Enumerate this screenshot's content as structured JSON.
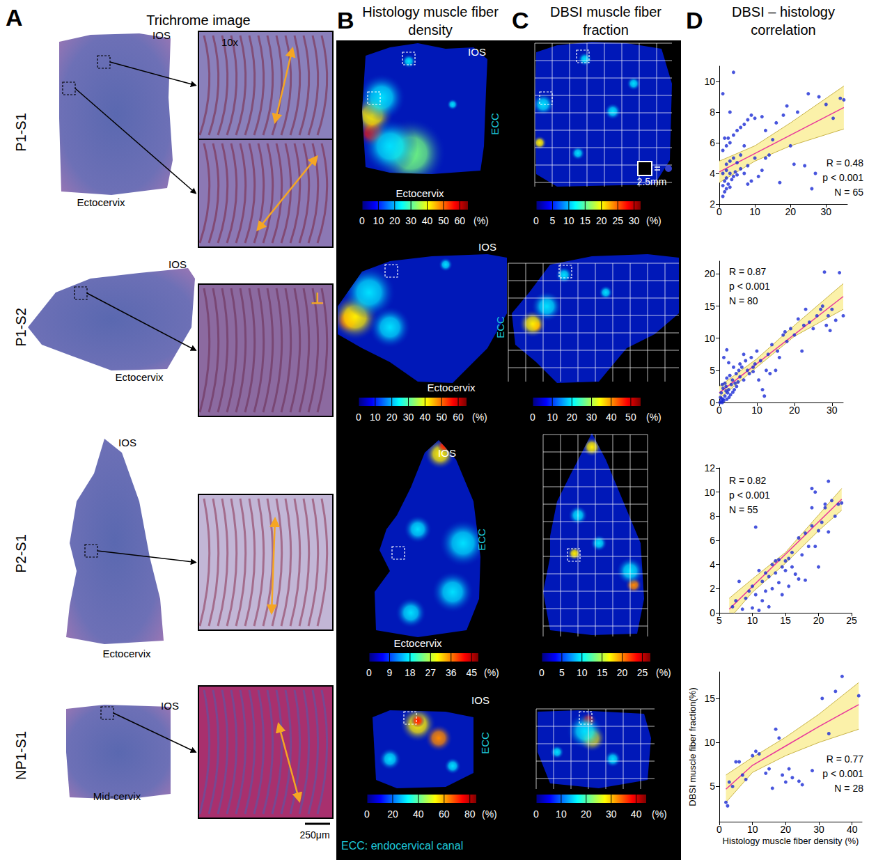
{
  "panel_headers": [
    {
      "letter": "A",
      "title": "Trichrome image"
    },
    {
      "letter": "B",
      "title": "Histology muscle fiber density"
    },
    {
      "letter": "C",
      "title": "DBSI muscle fiber fraction"
    },
    {
      "letter": "D",
      "title": "DBSI – histology correlation"
    }
  ],
  "rows": [
    {
      "label": "P1-S1",
      "trichrome": {
        "ios": "IOS",
        "region": "Ectocervix",
        "magnification": "10x"
      },
      "histology": {
        "ios": "IOS",
        "ecc": "ECC",
        "region": "Ectocervix",
        "colorbar": {
          "range": [
            0,
            65
          ],
          "ticks": [
            0,
            10,
            20,
            30,
            40,
            50,
            60
          ],
          "unit": "(%)"
        }
      },
      "dbsi": {
        "scale": "2.5mm",
        "colorbar": {
          "range": [
            0,
            32
          ],
          "ticks": [
            0,
            5,
            10,
            15,
            20,
            25,
            30
          ],
          "unit": "(%)"
        }
      }
    },
    {
      "label": "P1-S2",
      "trichrome": {
        "ios": "IOS",
        "region": "Ectocervix",
        "orientation_mark": "⊥"
      },
      "histology": {
        "ios": "IOS",
        "region": "Ectocervix",
        "colorbar": {
          "range": [
            0,
            65
          ],
          "ticks": [
            0,
            10,
            20,
            30,
            40,
            50,
            60
          ],
          "unit": "(%)"
        }
      },
      "dbsi": {
        "ecc": "ECC",
        "colorbar": {
          "range": [
            0,
            55
          ],
          "ticks": [
            0,
            10,
            20,
            30,
            40,
            50
          ],
          "unit": "(%)"
        }
      }
    },
    {
      "label": "P2-S1",
      "trichrome": {
        "ios": "IOS",
        "region": "Ectocervix"
      },
      "histology": {
        "ios": "IOS",
        "ecc": "ECC",
        "region": "Ectocervix",
        "colorbar": {
          "range": [
            0,
            48
          ],
          "ticks": [
            0,
            9,
            18,
            27,
            36,
            45
          ],
          "unit": "(%)"
        }
      },
      "dbsi": {
        "colorbar": {
          "range": [
            0,
            27
          ],
          "ticks": [
            0,
            5,
            10,
            15,
            20,
            25
          ],
          "unit": "(%)"
        }
      }
    },
    {
      "label": "NP1-S1",
      "trichrome": {
        "ios": "IOS",
        "region": "Mid-cervix"
      },
      "histology": {
        "ios": "IOS",
        "ecc": "ECC",
        "colorbar": {
          "range": [
            0,
            85
          ],
          "ticks": [
            0,
            20,
            40,
            60,
            80
          ],
          "unit": "(%)"
        }
      },
      "dbsi": {
        "colorbar": {
          "range": [
            0,
            44
          ],
          "ticks": [
            0,
            10,
            20,
            30,
            40
          ],
          "unit": "(%)"
        }
      }
    }
  ],
  "scale_bar": "250μm",
  "footnote": "ECC: endocervical canal",
  "chart_data": [
    {
      "type": "scatter",
      "color": "#1a2ad4",
      "x": [
        1,
        1.5,
        2,
        1,
        2.5,
        3,
        1.5,
        2,
        3.5,
        4,
        1,
        2,
        3,
        4.5,
        5,
        6,
        7,
        8,
        2,
        3,
        4,
        5,
        6,
        1,
        2,
        3,
        1.5,
        2.5,
        4,
        5,
        6,
        7,
        8,
        9,
        10,
        3,
        1,
        4,
        9,
        11,
        12,
        13,
        14,
        15,
        16,
        17,
        18,
        19,
        20,
        21,
        22,
        24,
        25,
        26,
        27,
        28,
        30,
        32,
        34,
        35,
        12,
        13,
        7,
        10,
        8
      ],
      "values": [
        2.5,
        2.8,
        3.0,
        3.2,
        3.3,
        3.1,
        3.5,
        3.7,
        3.6,
        3.8,
        4.0,
        4.2,
        4.0,
        4.1,
        3.9,
        4.3,
        4.0,
        4.5,
        4.6,
        4.8,
        5.0,
        4.7,
        5.2,
        5.5,
        5.8,
        6.0,
        6.3,
        6.3,
        6.5,
        6.8,
        7.0,
        7.2,
        7.5,
        7.8,
        7.6,
        8.0,
        9.2,
        10.6,
        3.5,
        3.8,
        4.2,
        5.0,
        5.2,
        6.2,
        7.3,
        3.4,
        7.8,
        8.4,
        5.8,
        4.6,
        8.0,
        4.5,
        9.2,
        3.0,
        4.0,
        9.0,
        8.5,
        7.6,
        8.9,
        8.8,
        7.7,
        6.8,
        5.8,
        5.0,
        3.3
      ],
      "xlim": [
        0,
        36
      ],
      "xticks": [
        0,
        10,
        20,
        30
      ],
      "ylim": [
        2,
        11
      ],
      "yticks": [
        2,
        4,
        6,
        8,
        10
      ],
      "fit": {
        "x": [
          0,
          35
        ],
        "values": [
          4.1,
          8.3
        ],
        "color": "#e8369b"
      },
      "band": {
        "x": [
          0,
          10,
          20,
          35
        ],
        "lower": [
          3.4,
          4.8,
          5.8,
          6.9
        ],
        "upper": [
          4.8,
          5.8,
          7.3,
          9.7
        ],
        "color": "#fbf1a9"
      },
      "annotations": [
        "R = 0.48",
        "p < 0.001",
        "N = 65"
      ]
    },
    {
      "type": "scatter",
      "color": "#1a2ad4",
      "x": [
        0.2,
        0.5,
        0.8,
        1,
        1.2,
        1.5,
        0.3,
        2,
        2.2,
        2.5,
        0.5,
        1,
        1.8,
        3,
        3.2,
        3.5,
        0.8,
        1.5,
        2,
        2.8,
        4,
        4.2,
        4.5,
        5,
        5.2,
        3.8,
        2.5,
        1.2,
        0.6,
        1.8,
        2.6,
        3.6,
        4.6,
        5.5,
        6,
        6.5,
        7,
        7.5,
        8,
        2,
        8.5,
        9,
        9.5,
        10,
        10.5,
        11,
        11.5,
        12,
        12.5,
        13,
        13.5,
        14,
        15,
        15.5,
        16,
        17,
        17.5,
        18,
        19,
        20,
        21,
        22,
        5.5,
        6.5,
        9,
        22.5,
        23,
        24,
        25,
        26,
        27,
        27.5,
        28,
        28.5,
        29,
        29.5,
        30,
        31,
        32,
        33
      ],
      "values": [
        0,
        0.2,
        0,
        0.5,
        0.3,
        1,
        0.8,
        0.5,
        1.5,
        2,
        1.5,
        2.2,
        2.5,
        1.2,
        2.8,
        3.5,
        2.8,
        3,
        3.8,
        4.2,
        2,
        3,
        4.5,
        3.2,
        5,
        5.5,
        6.2,
        7,
        0.6,
        1.8,
        0.8,
        1.6,
        2.5,
        4,
        5.5,
        3.5,
        6.5,
        5,
        4.5,
        8.2,
        7,
        5.5,
        6,
        8,
        3.5,
        6.5,
        2,
        1,
        5,
        7.5,
        4.5,
        9,
        5,
        8,
        7,
        10.5,
        11,
        9.5,
        11.5,
        10.5,
        13,
        8,
        6,
        7.5,
        4.8,
        12,
        14.5,
        12.5,
        11.5,
        13.5,
        14.5,
        15,
        20.3,
        12,
        13.5,
        11.2,
        14.5,
        12.8,
        20.2,
        13.5
      ],
      "xlim": [
        0,
        33
      ],
      "xticks": [
        0,
        10,
        20,
        30
      ],
      "ylim": [
        0,
        22
      ],
      "yticks": [
        0,
        5,
        10,
        15,
        20
      ],
      "fit": {
        "x": [
          0,
          33
        ],
        "values": [
          1.5,
          16.5
        ],
        "color": "#e8369b"
      },
      "band": {
        "x": [
          0,
          10,
          20,
          33
        ],
        "lower": [
          0.6,
          5.5,
          10.3,
          14.5
        ],
        "upper": [
          2.5,
          6.8,
          12,
          18.5
        ],
        "color": "#fbf1a9"
      },
      "annotations": [
        "R = 0.87",
        "p < 0.001",
        "N = 80"
      ]
    },
    {
      "type": "scatter",
      "color": "#1a2ad4",
      "x": [
        7,
        7.5,
        8,
        8.5,
        9,
        9.5,
        10,
        10,
        10.5,
        10.5,
        11,
        11,
        11.5,
        11.5,
        12,
        12,
        12.5,
        12.5,
        13,
        13,
        13.5,
        13.5,
        14,
        14,
        14.5,
        14.5,
        15,
        15,
        15.5,
        15.5,
        16,
        16,
        16.5,
        17,
        17,
        17.5,
        18,
        18,
        18.5,
        19,
        19,
        19,
        19.5,
        19.5,
        20,
        20,
        20.5,
        21,
        21,
        21.5,
        21.5,
        22,
        22.5,
        23,
        23.5
      ],
      "values": [
        0.5,
        1,
        2.6,
        0.3,
        1.2,
        1.8,
        0.4,
        2.2,
        7.1,
        1.5,
        0.2,
        3.5,
        1,
        2.6,
        3.3,
        1.8,
        3,
        0.5,
        4,
        2,
        4.3,
        3.3,
        4.4,
        2.5,
        3.8,
        1.5,
        4.3,
        3.5,
        2.2,
        4.5,
        5,
        3.8,
        3.2,
        6.2,
        2.8,
        4.8,
        6.6,
        2.7,
        5.5,
        8.7,
        7.2,
        10.3,
        10,
        5.5,
        3.8,
        6.8,
        7.5,
        9,
        8.7,
        10.9,
        6.7,
        9.3,
        8,
        9,
        9.1
      ],
      "xlim": [
        5,
        25
      ],
      "xticks": [
        5,
        10,
        15,
        20,
        25
      ],
      "ylim": [
        0,
        12
      ],
      "yticks": [
        0,
        2,
        4,
        6,
        8,
        10,
        12
      ],
      "fit": {
        "x": [
          6.5,
          23.5
        ],
        "values": [
          0.3,
          9.4
        ],
        "color": "#e8369b"
      },
      "band": {
        "x": [
          6.5,
          10,
          15,
          20,
          23.5
        ],
        "lower": [
          -0.5,
          1.7,
          4.1,
          6.8,
          8.5
        ],
        "upper": [
          1.2,
          2.8,
          5,
          8.1,
          10.3
        ],
        "color": "#fbf1a9"
      },
      "annotations": [
        "R = 0.82",
        "p < 0.001",
        "N = 55"
      ]
    },
    {
      "type": "scatter",
      "color": "#1a2ad4",
      "x": [
        2,
        2.5,
        3,
        4,
        5,
        6,
        7,
        8,
        10,
        11,
        12,
        14,
        15,
        16,
        17,
        18,
        19,
        20,
        21,
        22,
        24,
        25,
        28,
        31,
        33,
        35,
        37,
        42
      ],
      "values": [
        3.2,
        2.8,
        5.5,
        5,
        7.8,
        7.8,
        6.3,
        5.8,
        8.5,
        9,
        8.7,
        6.5,
        7,
        4.8,
        11.5,
        10.5,
        6.3,
        5.5,
        7,
        6,
        5.6,
        5.2,
        6.8,
        15,
        11,
        15.8,
        17.5,
        15.3
      ],
      "xlim": [
        0,
        43
      ],
      "xticks": [
        0,
        10,
        20,
        30,
        40
      ],
      "ylim": [
        1,
        18
      ],
      "yticks": [
        5,
        10,
        15
      ],
      "xlabel": "Histology muscle fiber density (%)",
      "ylabel": "DBSI muscle fiber fraction(%)",
      "fit": {
        "x": [
          2,
          10,
          20,
          30,
          42
        ],
        "values": [
          4.7,
          7.4,
          9.6,
          11.8,
          14.3
        ],
        "color": "#e8369b"
      },
      "band": {
        "x": [
          2,
          10,
          20,
          30,
          42
        ],
        "lower": [
          3.2,
          6.6,
          8.5,
          10,
          11.5
        ],
        "upper": [
          6.3,
          8.3,
          10.6,
          13.2,
          16.8
        ],
        "color": "#fbf1a9"
      },
      "annotations": [
        "R = 0.77",
        "p < 0.001",
        "N = 28"
      ]
    }
  ]
}
